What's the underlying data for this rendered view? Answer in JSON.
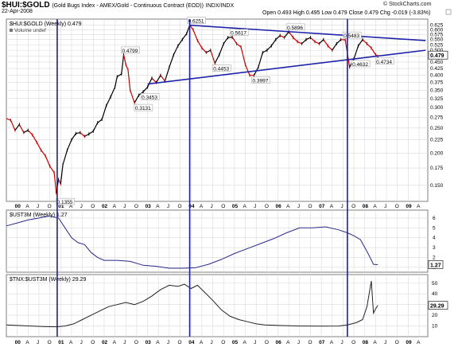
{
  "header": {
    "symbol": "$HUI:$GOLD",
    "description": "(Gold Bugs Index - AMEX/Gold - Continuous Contract (EOD))",
    "exchange": "INDX/INDX",
    "date": "22-Apr-2008",
    "ohlc": "Open 0.493  High 0.495  Low 0.479  Close 0.479  Chg -0.019 (-3.83%)",
    "source": "© StockCharts.com"
  },
  "colors": {
    "price_line": "#000000",
    "up_bar": "#000000",
    "down_bar": "#cc0000",
    "trendline": "#1f24a8",
    "vertical_marker": "#20208f",
    "ust3m_line": "#2a2a8a",
    "tnx_line": "#222222",
    "grid": "#d9d9d9",
    "border": "#7f7f7f"
  },
  "chart_data": [
    {
      "type": "line",
      "name": "main",
      "title": "$HUI:$GOLD (Weekly) 0.479",
      "legend": [
        "Volume undef"
      ],
      "y_axis_side": "right",
      "ylim": [
        0.13,
        0.66
      ],
      "y_ticks": [
        0.15,
        0.175,
        0.2,
        0.225,
        0.25,
        0.275,
        0.3,
        0.325,
        0.35,
        0.375,
        0.4,
        0.425,
        0.45,
        0.475,
        0.5,
        0.525,
        0.55,
        0.575,
        0.6,
        0.625
      ],
      "last_value_label": "0.479",
      "x_ticks": [
        "00",
        "A",
        "J",
        "O",
        "01",
        "A",
        "J",
        "O",
        "02",
        "A",
        "J",
        "O",
        "03",
        "A",
        "J",
        "O",
        "04",
        "A",
        "J",
        "O",
        "05",
        "A",
        "J",
        "O",
        "06",
        "A",
        "J",
        "O",
        "07",
        "A",
        "J",
        "O",
        "08",
        "A",
        "J",
        "O",
        "09",
        "A"
      ],
      "x_start": 1999.75,
      "x_end": 2009.45,
      "series": [
        {
          "x": [
            1999.75,
            1999.85,
            1999.95,
            2000.05,
            2000.15,
            2000.25,
            2000.35,
            2000.45,
            2000.55,
            2000.65,
            2000.75,
            2000.85,
            2000.9,
            2000.95,
            2001.0,
            2001.05,
            2001.15,
            2001.25,
            2001.35,
            2001.45,
            2001.55,
            2001.65,
            2001.75,
            2001.85,
            2001.95,
            2002.05,
            2002.15,
            2002.25,
            2002.3,
            2002.4,
            2002.45,
            2002.5,
            2002.55,
            2002.6,
            2002.7,
            2002.8,
            2002.9,
            2003.0,
            2003.1,
            2003.2,
            2003.3,
            2003.4,
            2003.5,
            2003.6,
            2003.7,
            2003.8,
            2003.9,
            2003.97,
            2004.05,
            2004.15,
            2004.25,
            2004.35,
            2004.45,
            2004.55,
            2004.65,
            2004.75,
            2004.85,
            2004.95,
            2005.05,
            2005.15,
            2005.25,
            2005.35,
            2005.45,
            2005.55,
            2005.65,
            2005.75,
            2005.85,
            2005.95,
            2006.05,
            2006.15,
            2006.25,
            2006.35,
            2006.45,
            2006.55,
            2006.65,
            2006.75,
            2006.85,
            2006.95,
            2007.05,
            2007.15,
            2007.25,
            2007.35,
            2007.45,
            2007.55,
            2007.65,
            2007.75,
            2007.85,
            2007.95,
            2008.05,
            2008.15,
            2008.25,
            2008.3
          ],
          "y": [
            0.272,
            0.268,
            0.245,
            0.258,
            0.24,
            0.245,
            0.235,
            0.22,
            0.205,
            0.195,
            0.178,
            0.168,
            0.14,
            0.158,
            0.152,
            0.18,
            0.205,
            0.225,
            0.238,
            0.24,
            0.232,
            0.237,
            0.243,
            0.262,
            0.27,
            0.305,
            0.33,
            0.36,
            0.395,
            0.405,
            0.4799,
            0.44,
            0.42,
            0.35,
            0.3131,
            0.335,
            0.3453,
            0.36,
            0.39,
            0.375,
            0.4,
            0.38,
            0.43,
            0.48,
            0.52,
            0.55,
            0.58,
            0.6251,
            0.6,
            0.545,
            0.51,
            0.49,
            0.5,
            0.4453,
            0.48,
            0.53,
            0.56,
            0.5617,
            0.53,
            0.515,
            0.44,
            0.4,
            0.3997,
            0.43,
            0.49,
            0.5,
            0.52,
            0.55,
            0.57,
            0.56,
            0.5896,
            0.56,
            0.54,
            0.53,
            0.55,
            0.56,
            0.54,
            0.53,
            0.55,
            0.52,
            0.5,
            0.53,
            0.55,
            0.5483,
            0.43,
            0.4632,
            0.52,
            0.55,
            0.53,
            0.51,
            0.48,
            0.4734
          ]
        }
      ],
      "annotations": [
        {
          "x": 2000.95,
          "y": 0.1355,
          "label": "0.1355"
        },
        {
          "x": 2002.45,
          "y": 0.4799,
          "label": "0.4799"
        },
        {
          "x": 2002.9,
          "y": 0.3453,
          "label": "0.3453"
        },
        {
          "x": 2002.75,
          "y": 0.3131,
          "label": "0.3131"
        },
        {
          "x": 2003.97,
          "y": 0.6251,
          "label": "0.6251"
        },
        {
          "x": 2004.55,
          "y": 0.4453,
          "label": "0.4453"
        },
        {
          "x": 2004.95,
          "y": 0.5617,
          "label": "0.5617"
        },
        {
          "x": 2005.45,
          "y": 0.3997,
          "label": "0.3997"
        },
        {
          "x": 2006.25,
          "y": 0.5896,
          "label": "0.5896"
        },
        {
          "x": 2007.55,
          "y": 0.5483,
          "label": "0.5483"
        },
        {
          "x": 2007.75,
          "y": 0.4632,
          "label": "0.4632"
        },
        {
          "x": 2008.3,
          "y": 0.4734,
          "label": "0.4734"
        }
      ],
      "trendlines": [
        {
          "x1": 2003.97,
          "y1": 0.6251,
          "x2": 2009.4,
          "y2": 0.545
        },
        {
          "x1": 2003.0,
          "y1": 0.37,
          "x2": 2009.4,
          "y2": 0.5
        }
      ],
      "vertical_markers": [
        2000.92,
        2003.97,
        2007.6
      ]
    },
    {
      "type": "line",
      "name": "ust3m",
      "title": "$UST3M (Weekly) 1.27",
      "ylim": [
        0.5,
        6.8
      ],
      "y_ticks": [
        1,
        2,
        3,
        4,
        5,
        6
      ],
      "last_value_label": "1.27",
      "series": [
        {
          "x": [
            1999.75,
            2000.0,
            2000.25,
            2000.5,
            2000.75,
            2000.95,
            2001.1,
            2001.25,
            2001.4,
            2001.55,
            2001.7,
            2001.85,
            2002.0,
            2002.3,
            2002.6,
            2002.9,
            2003.2,
            2003.5,
            2003.8,
            2004.1,
            2004.4,
            2004.7,
            2005.0,
            2005.3,
            2005.6,
            2005.9,
            2006.2,
            2006.5,
            2006.8,
            2007.1,
            2007.4,
            2007.6,
            2007.75,
            2007.9,
            2008.0,
            2008.1,
            2008.2,
            2008.3
          ],
          "y": [
            5.2,
            5.5,
            5.8,
            6.0,
            6.2,
            6.0,
            5.0,
            4.0,
            3.5,
            3.3,
            2.5,
            2.0,
            1.7,
            1.7,
            1.6,
            1.2,
            1.1,
            0.9,
            0.9,
            0.95,
            1.3,
            1.8,
            2.4,
            2.9,
            3.4,
            3.9,
            4.5,
            5.0,
            5.0,
            5.1,
            4.8,
            4.5,
            4.2,
            3.8,
            3.0,
            2.2,
            1.3,
            1.27
          ]
        }
      ]
    },
    {
      "type": "line",
      "name": "tnx_ust3m",
      "title": "$TNX:$UST3M (Weekly) 29.29",
      "ylim": [
        0,
        58
      ],
      "y_ticks": [
        10,
        20,
        30,
        40,
        50
      ],
      "last_value_label": "29.29",
      "series": [
        {
          "x": [
            1999.75,
            2000.0,
            2000.3,
            2000.6,
            2000.9,
            2001.1,
            2001.3,
            2001.5,
            2001.7,
            2001.9,
            2002.1,
            2002.3,
            2002.5,
            2002.7,
            2002.9,
            2003.1,
            2003.3,
            2003.5,
            2003.7,
            2003.85,
            2004.0,
            2004.15,
            2004.3,
            2004.5,
            2004.7,
            2004.9,
            2005.1,
            2005.3,
            2005.5,
            2005.7,
            2006.0,
            2006.5,
            2007.0,
            2007.4,
            2007.6,
            2007.8,
            2007.95,
            2008.05,
            2008.15,
            2008.2,
            2008.25,
            2008.3
          ],
          "y": [
            11,
            10.5,
            10,
            9.5,
            9.2,
            10,
            12,
            16,
            20,
            24,
            28,
            30,
            32,
            30,
            33,
            38,
            44,
            48,
            47,
            49,
            45,
            48,
            42,
            34,
            25,
            19,
            16,
            14,
            12,
            11,
            10.5,
            10,
            9.8,
            10,
            11,
            13,
            16,
            28,
            52,
            22,
            26,
            29.29
          ]
        }
      ]
    }
  ]
}
